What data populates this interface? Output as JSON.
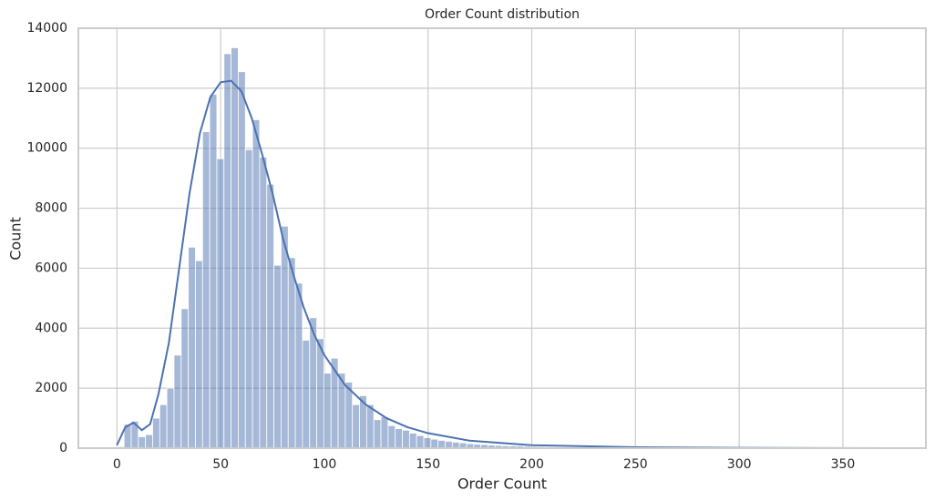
{
  "chart_data": {
    "type": "histogram",
    "title": "Order Count distribution",
    "x_label": "Order Count",
    "y_label": "Count",
    "bins": [
      0,
      3.44,
      6.88,
      10.32,
      13.76,
      17.2,
      20.64,
      24.08,
      27.52,
      30.96,
      34.4,
      37.84,
      41.28,
      44.72,
      48.16,
      51.6,
      55.04,
      58.48,
      61.92,
      65.36,
      68.8,
      72.24,
      75.68,
      79.12,
      82.56,
      86,
      89.44,
      92.88,
      96.32,
      99.76,
      103.2,
      106.64,
      110.08,
      113.52,
      116.96,
      120.4,
      123.84,
      127.28,
      130.72,
      134.16,
      137.6,
      141.04,
      144.48,
      147.92,
      151.36,
      154.8,
      158.24,
      161.68,
      165.12,
      168.56,
      172,
      175.44,
      178.88,
      182.32,
      185.76,
      189.2,
      192.64,
      196.08,
      199.52,
      202.96,
      206.4,
      209.84,
      213.28,
      216.72,
      220.16,
      223.6,
      227.04,
      230.48,
      233.92,
      237.36,
      240.8,
      244.24,
      247.68,
      251.12,
      254.56,
      258,
      261.44,
      264.88,
      268.32,
      271.76,
      275.2,
      278.64,
      282.08,
      285.52,
      288.96,
      292.4,
      295.84,
      299.28,
      302.72,
      306.16,
      309.6,
      313.04,
      316.48,
      319.92,
      323.36,
      326.8,
      330.24,
      333.68,
      337.12,
      340.56,
      344,
      347.44,
      350.88,
      354.32,
      357.76,
      361.2,
      364.64,
      368.08,
      371.52
    ],
    "values": [
      50,
      800,
      900,
      380,
      450,
      1000,
      1450,
      2000,
      3100,
      4650,
      6700,
      6250,
      10550,
      11800,
      9650,
      13150,
      13350,
      12550,
      9950,
      10950,
      9700,
      8800,
      6100,
      7400,
      6350,
      5500,
      3600,
      4350,
      3650,
      2500,
      3000,
      2500,
      2200,
      1450,
      1750,
      1450,
      950,
      1050,
      750,
      650,
      600,
      500,
      420,
      350,
      300,
      260,
      230,
      200,
      180,
      150,
      130,
      120,
      100,
      90,
      80,
      75,
      70,
      60,
      55,
      50,
      45,
      40,
      35,
      30,
      28,
      25,
      22,
      20,
      18,
      16,
      14,
      12,
      10,
      9,
      8,
      8,
      7,
      6,
      5,
      5,
      4,
      4,
      3,
      3,
      3,
      2,
      2,
      2,
      2,
      1,
      1,
      1,
      1,
      1,
      1,
      1,
      1,
      1,
      0,
      0,
      1,
      0,
      0,
      1,
      0,
      0,
      0,
      1
    ],
    "color": "#4c72b0",
    "kde": {
      "x": [
        0,
        4,
        8,
        12,
        16,
        20,
        25,
        30,
        35,
        40,
        45,
        50,
        55,
        60,
        65,
        70,
        75,
        80,
        85,
        90,
        95,
        100,
        110,
        120,
        130,
        140,
        150,
        170,
        200,
        250,
        300,
        372
      ],
      "y": [
        100,
        700,
        850,
        600,
        800,
        1800,
        3500,
        6000,
        8500,
        10500,
        11700,
        12200,
        12250,
        11900,
        11000,
        9800,
        8500,
        7000,
        5800,
        4700,
        3800,
        3100,
        2100,
        1450,
        1000,
        700,
        500,
        250,
        100,
        30,
        10,
        0
      ]
    },
    "xlim": [
      -18.6,
      390
    ],
    "ylim": [
      0,
      14000
    ],
    "xticks": [
      0,
      50,
      100,
      150,
      200,
      250,
      300,
      350
    ],
    "yticks": [
      0,
      2000,
      4000,
      6000,
      8000,
      10000,
      12000,
      14000
    ],
    "grid": true
  }
}
